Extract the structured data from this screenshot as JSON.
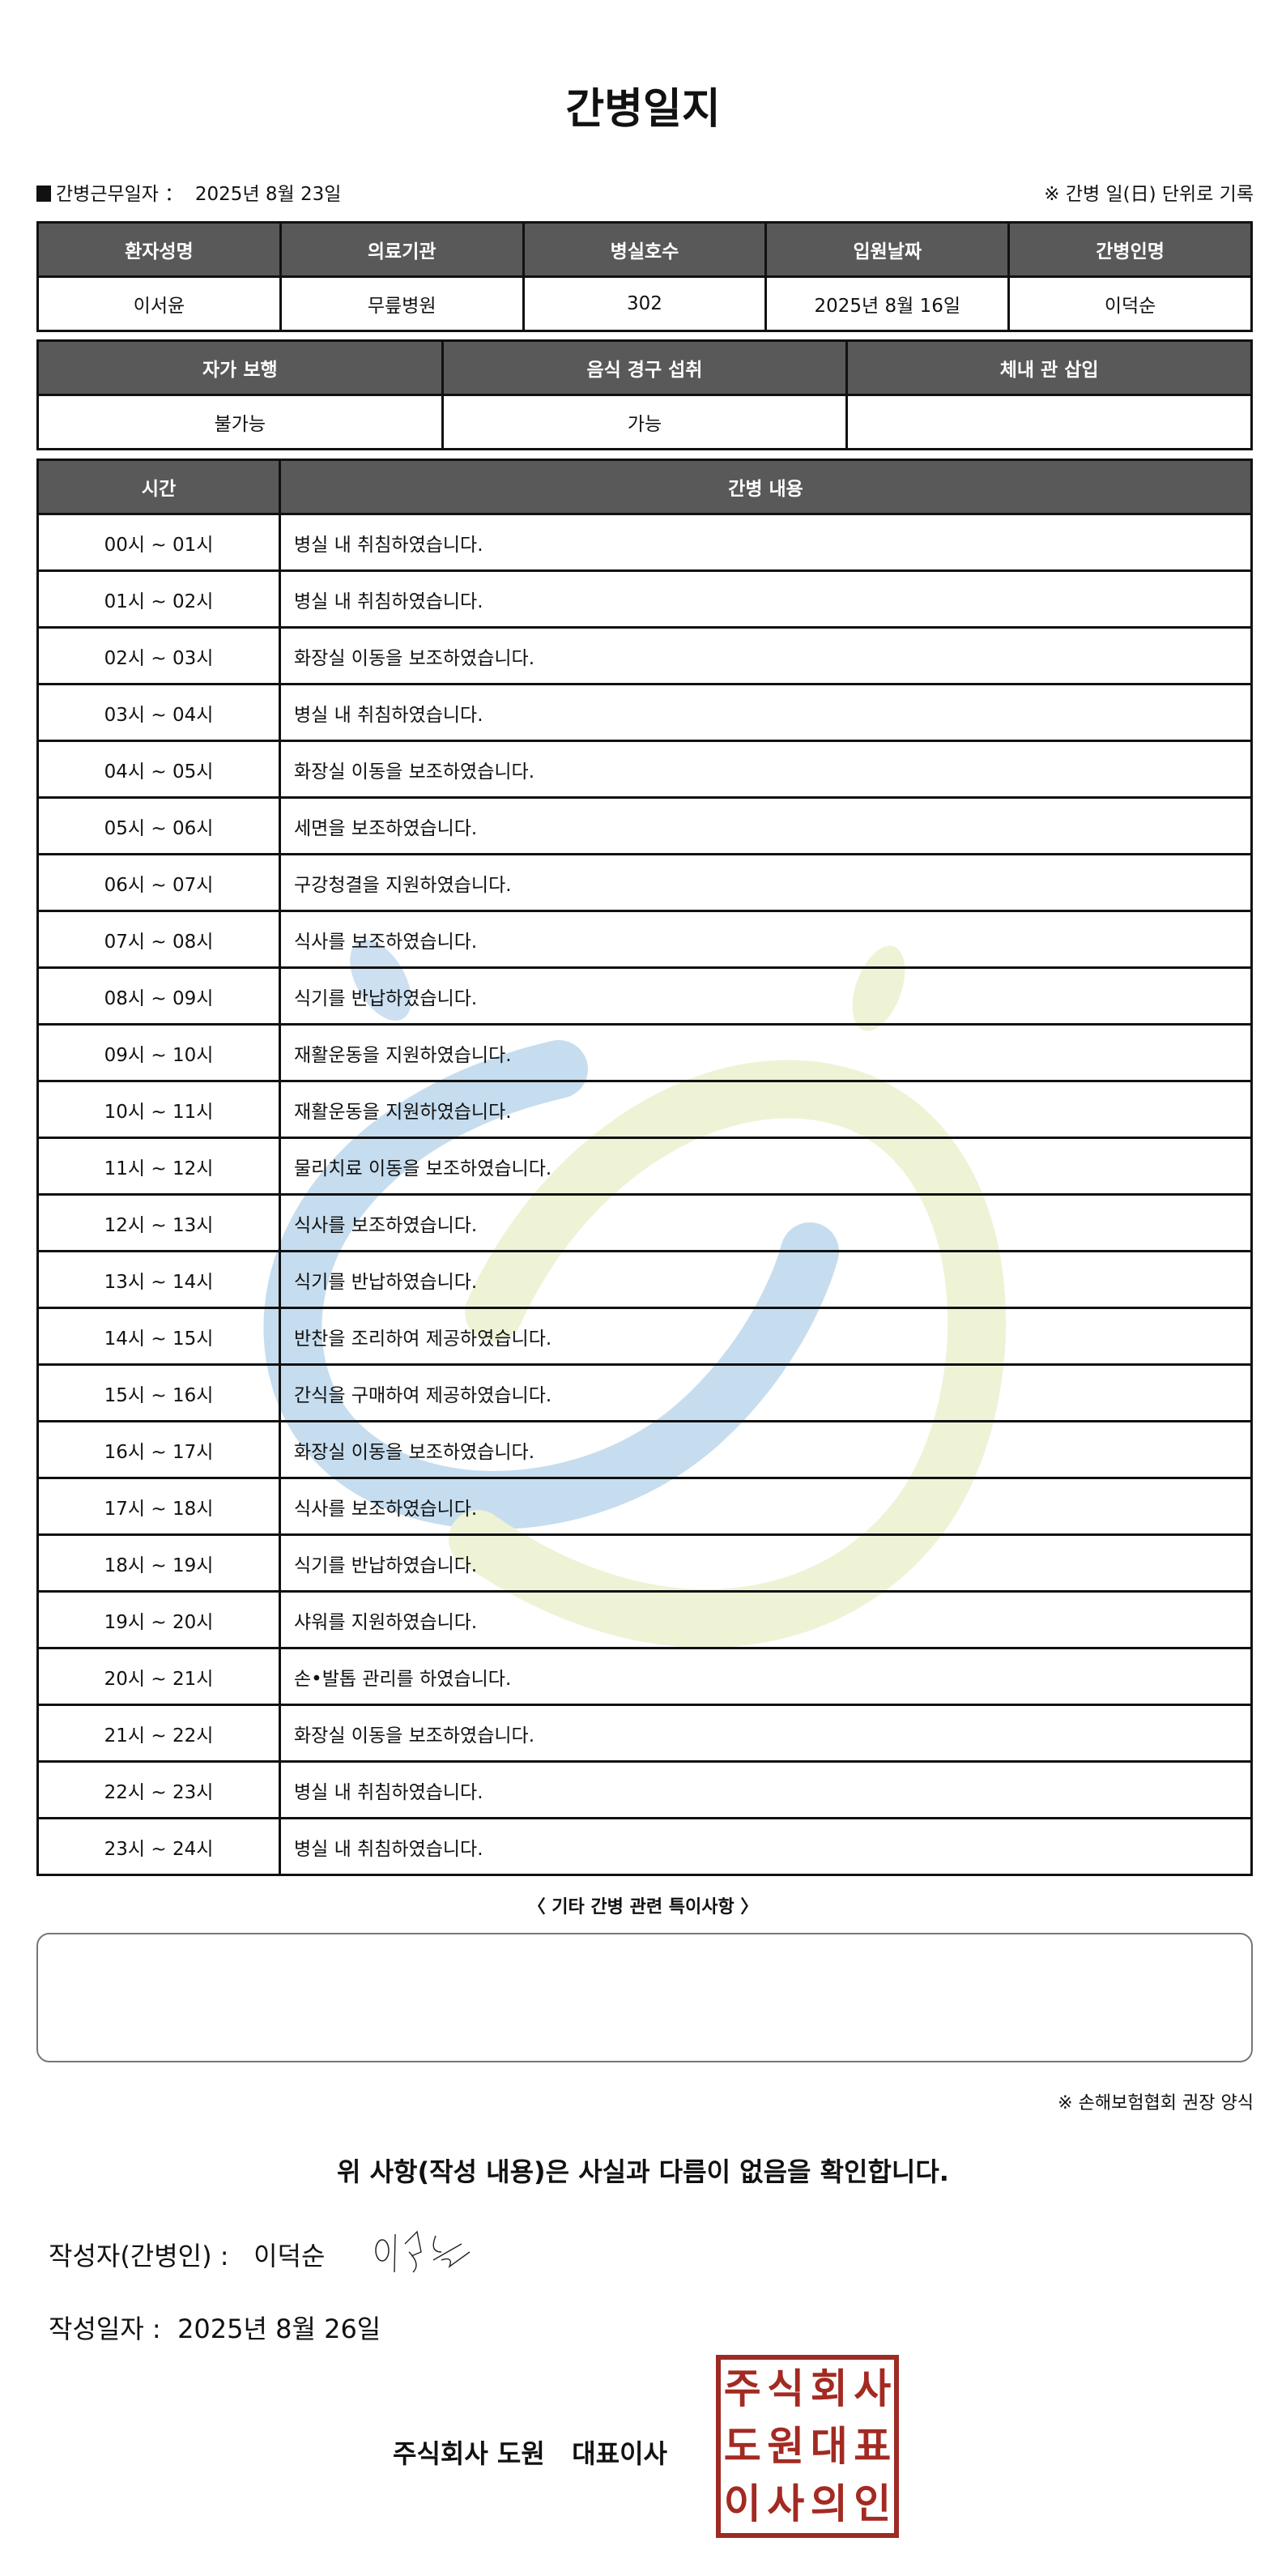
{
  "title": "간병일지",
  "info": {
    "work_date_label": "간병근무일자 ：",
    "work_date": "2025년 8월 23일",
    "note": "※ 간병 일(日) 단위로 기록"
  },
  "patient_table": {
    "headers": [
      "환자성명",
      "의료기관",
      "병실호수",
      "입원날짜",
      "간병인명"
    ],
    "values": [
      "이서윤",
      "무릎병원",
      "302",
      "2025년 8월 16일",
      "이덕순"
    ]
  },
  "status_table": {
    "headers": [
      "자가 보행",
      "음식 경구 섭취",
      "체내 관 삽입"
    ],
    "values": [
      "불가능",
      "가능",
      ""
    ]
  },
  "log_table": {
    "headers": [
      "시간",
      "간병 내용"
    ],
    "rows": [
      {
        "time": "00시 ~ 01시",
        "content": "병실 내 취침하였습니다."
      },
      {
        "time": "01시 ~ 02시",
        "content": "병실 내 취침하였습니다."
      },
      {
        "time": "02시 ~ 03시",
        "content": "화장실 이동을 보조하였습니다."
      },
      {
        "time": "03시 ~ 04시",
        "content": "병실 내 취침하였습니다."
      },
      {
        "time": "04시 ~ 05시",
        "content": "화장실 이동을 보조하였습니다."
      },
      {
        "time": "05시 ~ 06시",
        "content": "세면을 보조하였습니다."
      },
      {
        "time": "06시 ~ 07시",
        "content": "구강청결을 지원하였습니다."
      },
      {
        "time": "07시 ~ 08시",
        "content": "식사를 보조하였습니다."
      },
      {
        "time": "08시 ~ 09시",
        "content": "식기를 반납하였습니다."
      },
      {
        "time": "09시 ~ 10시",
        "content": "재활운동을 지원하였습니다."
      },
      {
        "time": "10시 ~ 11시",
        "content": "재활운동을 지원하였습니다."
      },
      {
        "time": "11시 ~ 12시",
        "content": "물리치료 이동을 보조하였습니다."
      },
      {
        "time": "12시 ~ 13시",
        "content": "식사를 보조하였습니다."
      },
      {
        "time": "13시 ~ 14시",
        "content": "식기를 반납하였습니다."
      },
      {
        "time": "14시 ~ 15시",
        "content": "반찬을 조리하여 제공하였습니다."
      },
      {
        "time": "15시 ~ 16시",
        "content": "간식을 구매하여 제공하였습니다."
      },
      {
        "time": "16시 ~ 17시",
        "content": "화장실 이동을 보조하였습니다."
      },
      {
        "time": "17시 ~ 18시",
        "content": "식사를 보조하였습니다."
      },
      {
        "time": "18시 ~ 19시",
        "content": "식기를 반납하였습니다."
      },
      {
        "time": "19시 ~ 20시",
        "content": "샤워를 지원하였습니다."
      },
      {
        "time": "20시 ~ 21시",
        "content": "손•발톱 관리를 하였습니다."
      },
      {
        "time": "21시 ~ 22시",
        "content": "화장실 이동을 보조하였습니다."
      },
      {
        "time": "22시 ~ 23시",
        "content": "병실 내 취침하였습니다."
      },
      {
        "time": "23시 ~ 24시",
        "content": "병실 내 취침하였습니다."
      }
    ]
  },
  "notes": {
    "label": "〈 기타 간병 관련 특이사항 〉",
    "value": ""
  },
  "recommendation": "※ 손해보험협회 권장 양식",
  "confirmation": "위 사항(작성 내용)은 사실과 다름이 없음을 확인합니다.",
  "writer": {
    "label": "작성자(간병인) :",
    "name": "이덕순"
  },
  "written_date": {
    "label": "작성일자 :",
    "value": "2025년 8월 26일"
  },
  "company": "주식회사 도원   대표이사",
  "stamp_text": "주식회사도원대표이사의인",
  "colors": {
    "header_bg": "#595959",
    "stamp": "#9e2a24",
    "watermark_blue": "#c6ddef",
    "watermark_green": "#eef3d6"
  }
}
